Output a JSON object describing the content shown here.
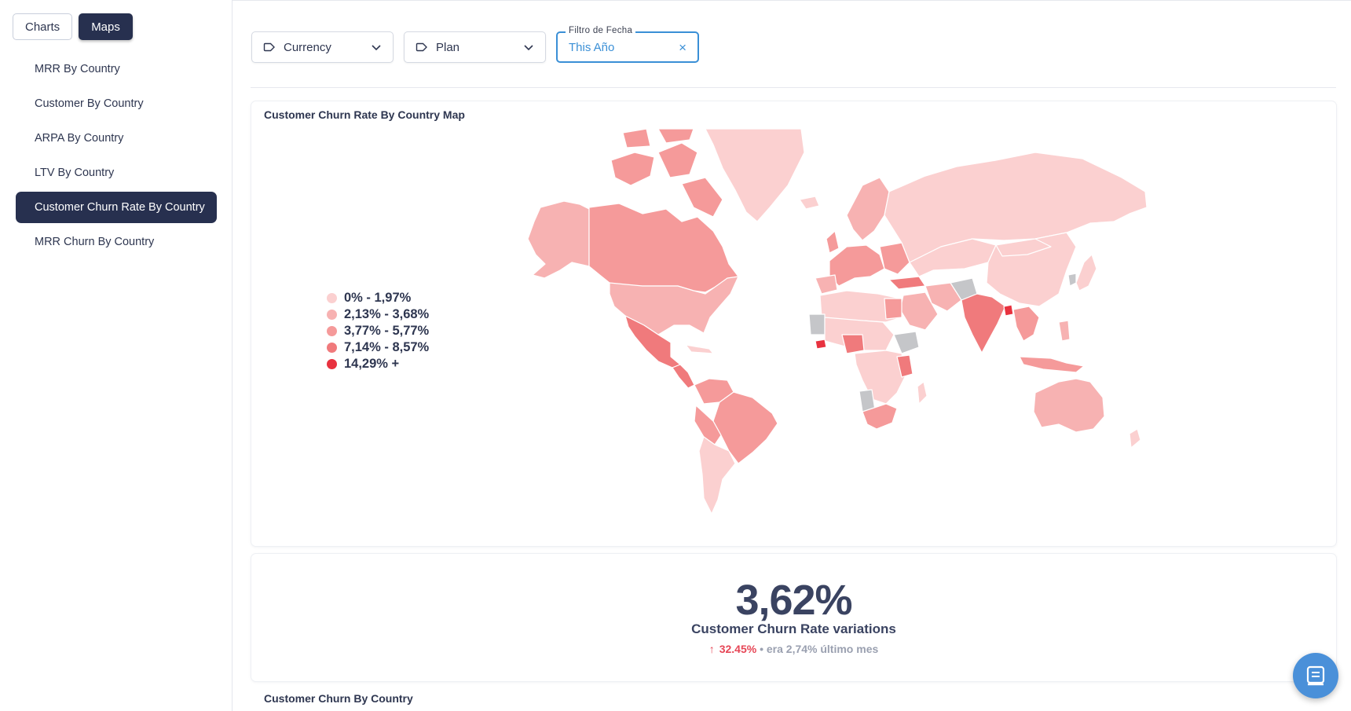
{
  "sidebar": {
    "tabs": [
      {
        "label": "Charts",
        "active": false
      },
      {
        "label": "Maps",
        "active": true
      }
    ],
    "items": [
      {
        "label": "MRR By Country"
      },
      {
        "label": "Customer By Country"
      },
      {
        "label": "ARPA By Country"
      },
      {
        "label": "LTV By Country"
      },
      {
        "label": "Customer Churn Rate By Country",
        "active": true
      },
      {
        "label": "MRR Churn By Country"
      }
    ]
  },
  "filters": {
    "currency": {
      "label": "Currency",
      "icon": "tag-icon"
    },
    "plan": {
      "label": "Plan",
      "icon": "tag-icon"
    },
    "date": {
      "legend": "Filtro de Fecha",
      "value": "This Año"
    }
  },
  "map_card": {
    "title": "Customer Churn Rate By Country Map",
    "legend": [
      {
        "label": "0% - 1,97%",
        "color": "#fbd0d0"
      },
      {
        "label": "2,13% - 3,68%",
        "color": "#f7b2b2"
      },
      {
        "label": "3,77% - 5,77%",
        "color": "#f59a9a"
      },
      {
        "label": "7,14% - 8,57%",
        "color": "#f07a7c"
      },
      {
        "label": "14,29% +",
        "color": "#e8323f"
      }
    ],
    "no_data_color": "#c5c6c9"
  },
  "kpi": {
    "value": "3,62%",
    "label": "Customer Churn Rate variations",
    "change_pct": "32.45%",
    "change_text": "• era 2,74% último mes"
  },
  "bottom_card": {
    "title": "Customer Churn By Country"
  },
  "colors": {
    "navy": "#27304f",
    "accent_blue": "#3a8fd6",
    "negative_red": "#e64656"
  }
}
